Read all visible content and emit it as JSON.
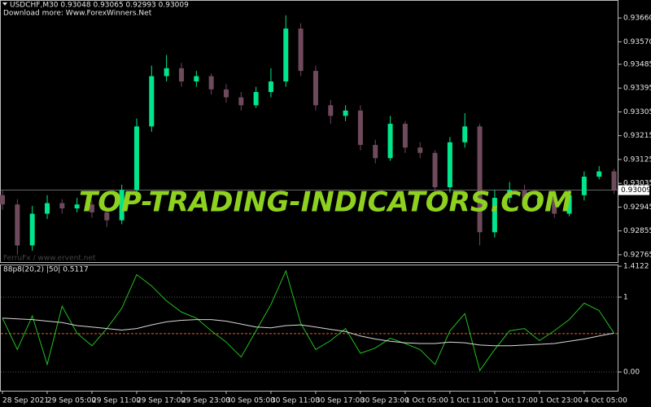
{
  "header": {
    "symbol_line": "USDCHF,M30  0.93048 0.93065 0.92993 0.93009",
    "download": "Download more: Www.ForexWinners.Net",
    "credit": "FerruFx / www.ervent.net",
    "watermark": "TOP-TRADING-INDICATORS.COM"
  },
  "chart_data": [
    {
      "type": "candlestick",
      "categories": [
        "28 Sep 2021",
        null,
        null,
        "29 Sep 05:00",
        null,
        null,
        "29 Sep 11:00",
        null,
        null,
        "29 Sep 17:00",
        null,
        null,
        "29 Sep 23:00",
        null,
        null,
        "30 Sep 05:00",
        null,
        null,
        "30 Sep 11:00",
        null,
        null,
        "30 Sep 17:00",
        null,
        null,
        "30 Sep 23:00",
        null,
        null,
        "1 Oct 05:00",
        null,
        null,
        "1 Oct 11:00",
        null,
        null,
        "1 Oct 17:00",
        null,
        null,
        "1 Oct 23:00",
        null,
        null,
        "4 Oct 05:00",
        null,
        null
      ],
      "open": [
        0.9299,
        0.92955,
        0.928,
        0.9292,
        0.9296,
        0.9294,
        0.92955,
        0.92925,
        0.92895,
        0.9301,
        0.9325,
        0.9344,
        0.9347,
        0.9342,
        0.9344,
        0.9339,
        0.9336,
        0.9333,
        0.9338,
        0.9342,
        0.9362,
        0.9346,
        0.9333,
        0.9329,
        0.9331,
        0.9318,
        0.9313,
        0.9326,
        0.9317,
        0.9315,
        0.9302,
        0.9319,
        0.9325,
        0.9285,
        0.9298,
        0.9301,
        0.9296,
        0.9298,
        0.9292,
        0.9299,
        0.9306,
        0.9308
      ],
      "high": [
        0.9301,
        0.92975,
        0.9295,
        0.9299,
        0.92975,
        0.9298,
        0.9297,
        0.92945,
        0.9303,
        0.9328,
        0.9348,
        0.9352,
        0.9349,
        0.9346,
        0.9345,
        0.9341,
        0.9338,
        0.934,
        0.9347,
        0.9367,
        0.9364,
        0.9348,
        0.9335,
        0.9333,
        0.9333,
        0.932,
        0.9329,
        0.9327,
        0.9319,
        0.9316,
        0.9321,
        0.933,
        0.9326,
        0.9301,
        0.9304,
        0.9303,
        0.93,
        0.92995,
        0.9301,
        0.9308,
        0.931,
        0.9309
      ],
      "low": [
        0.92935,
        0.92765,
        0.9278,
        0.929,
        0.9292,
        0.92925,
        0.92905,
        0.9287,
        0.9288,
        0.9299,
        0.9323,
        0.9342,
        0.934,
        0.934,
        0.9337,
        0.9334,
        0.9331,
        0.9332,
        0.9336,
        0.934,
        0.9344,
        0.9331,
        0.9326,
        0.9327,
        0.9316,
        0.9311,
        0.9312,
        0.9315,
        0.9313,
        0.93,
        0.93,
        0.9317,
        0.928,
        0.9283,
        0.9296,
        0.9294,
        0.9294,
        0.92905,
        0.9291,
        0.9297,
        0.9305,
        0.92995
      ],
      "close": [
        0.92955,
        0.928,
        0.9292,
        0.9296,
        0.9294,
        0.92955,
        0.92925,
        0.92895,
        0.9301,
        0.9325,
        0.9344,
        0.9347,
        0.9342,
        0.9344,
        0.9339,
        0.9336,
        0.9333,
        0.9338,
        0.9342,
        0.9362,
        0.9346,
        0.9333,
        0.9329,
        0.9331,
        0.9318,
        0.9313,
        0.9326,
        0.9317,
        0.9315,
        0.9302,
        0.9319,
        0.9325,
        0.9285,
        0.9298,
        0.9301,
        0.9296,
        0.9298,
        0.9292,
        0.9299,
        0.9306,
        0.9308,
        0.93009
      ],
      "up_color": "#00e68c",
      "down_color": "#6e4a5c",
      "ylim": [
        0.92737,
        0.93728
      ],
      "yticks": [
        {
          "value": 0.9366,
          "label": "0.93660"
        },
        {
          "value": 0.9357,
          "label": "0.93570"
        },
        {
          "value": 0.93485,
          "label": "0.93485"
        },
        {
          "value": 0.93395,
          "label": "0.93395"
        },
        {
          "value": 0.93305,
          "label": "0.93305"
        },
        {
          "value": 0.93215,
          "label": "0.93215"
        },
        {
          "value": 0.93125,
          "label": "0.93125"
        },
        {
          "value": 0.93035,
          "label": "0.93035"
        },
        {
          "value": 0.92945,
          "label": "0.92945"
        },
        {
          "value": 0.92855,
          "label": "0.92855"
        },
        {
          "value": 0.92765,
          "label": "0.92765"
        }
      ],
      "last_price": {
        "value": 0.93009,
        "label": "0.93009"
      }
    },
    {
      "type": "line",
      "title": "88p8(20,2) |50| 0.5117",
      "series": [
        {
          "color": "#22c21e",
          "values": [
            0.72,
            0.3,
            0.75,
            0.1,
            0.88,
            0.52,
            0.35,
            0.58,
            0.85,
            1.3,
            1.15,
            0.95,
            0.8,
            0.72,
            0.55,
            0.4,
            0.2,
            0.55,
            0.9,
            1.35,
            0.65,
            0.3,
            0.42,
            0.58,
            0.25,
            0.32,
            0.45,
            0.38,
            0.3,
            0.1,
            0.55,
            0.78,
            0.02,
            0.3,
            0.55,
            0.58,
            0.42,
            0.55,
            0.7,
            0.92,
            0.82,
            0.52
          ]
        },
        {
          "color": "#d8d8d8",
          "values": [
            0.72,
            0.71,
            0.7,
            0.68,
            0.66,
            0.62,
            0.6,
            0.58,
            0.56,
            0.58,
            0.63,
            0.67,
            0.69,
            0.7,
            0.7,
            0.68,
            0.64,
            0.6,
            0.59,
            0.62,
            0.63,
            0.6,
            0.57,
            0.54,
            0.48,
            0.44,
            0.41,
            0.39,
            0.38,
            0.38,
            0.4,
            0.39,
            0.36,
            0.35,
            0.35,
            0.36,
            0.37,
            0.38,
            0.41,
            0.44,
            0.48,
            0.52
          ]
        }
      ],
      "level": 0.5117,
      "level_color": "#e0602a",
      "ylim": [
        -0.25,
        1.435
      ],
      "yticks": [
        1.4122,
        1,
        {
          "value": 0,
          "label": "0.00"
        }
      ]
    }
  ]
}
